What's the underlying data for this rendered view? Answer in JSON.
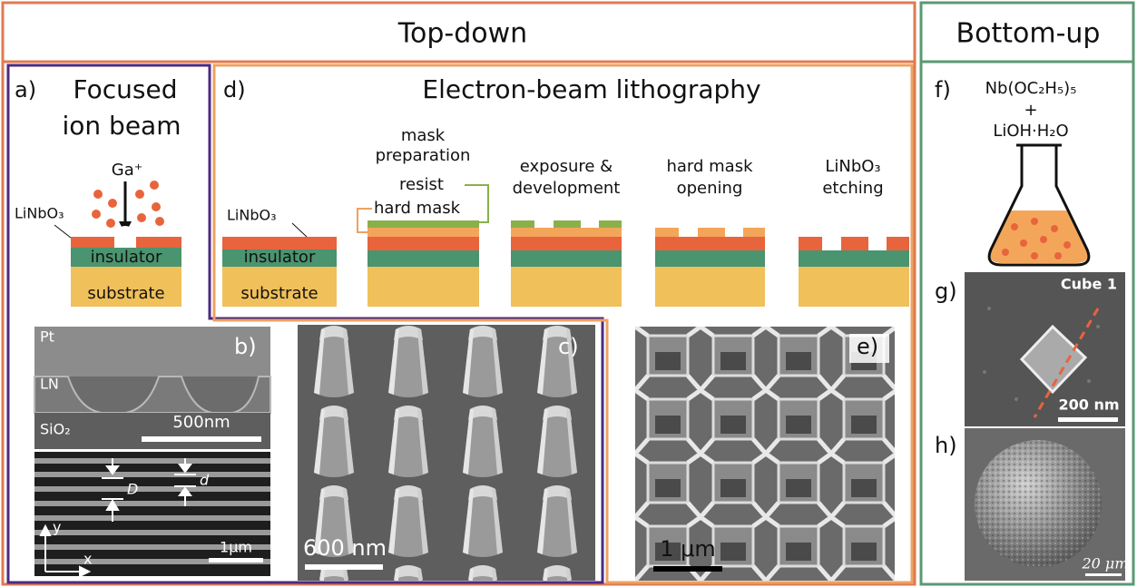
{
  "top_down": {
    "title": "Top-down"
  },
  "bottom_up": {
    "title": "Bottom-up"
  },
  "panel_a": {
    "label": "a)",
    "title_line1": "Focused",
    "title_line2": "ion beam",
    "ion": "Ga⁺",
    "material": "LiNbO₃",
    "layer_middle": "insulator",
    "layer_bottom": "substrate"
  },
  "panel_d": {
    "label": "d)",
    "title": "Electron-beam lithography",
    "material": "LiNbO₃",
    "layer_middle": "insulator",
    "layer_bottom": "substrate",
    "resist": "resist",
    "hard_mask": "hard mask",
    "steps": [
      [
        "mask",
        "preparation"
      ],
      [
        "exposure &",
        "development"
      ],
      [
        "hard mask",
        "opening"
      ],
      [
        "LiNbO₃",
        "etching"
      ]
    ]
  },
  "panel_b": {
    "label": "b)",
    "layers": [
      "Pt",
      "LN",
      "SiO₂"
    ],
    "scale_top": "500nm",
    "dim_D": "D",
    "dim_d": "d",
    "scale_bottom": "1μm",
    "axis_y": "y",
    "axis_x": "x"
  },
  "panel_c": {
    "label": "c)",
    "scale": "600 nm"
  },
  "panel_e": {
    "label": "e)",
    "scale": "1 μm"
  },
  "panel_f": {
    "label": "f)",
    "reagent1": "Nb(OC₂H₅)₅",
    "plus": "+",
    "reagent2": "LiOH·H₂O"
  },
  "panel_g": {
    "label": "g)",
    "sample": "Cube 1",
    "scale": "200 nm"
  },
  "panel_h": {
    "label": "h)",
    "scale": "20 μm"
  }
}
